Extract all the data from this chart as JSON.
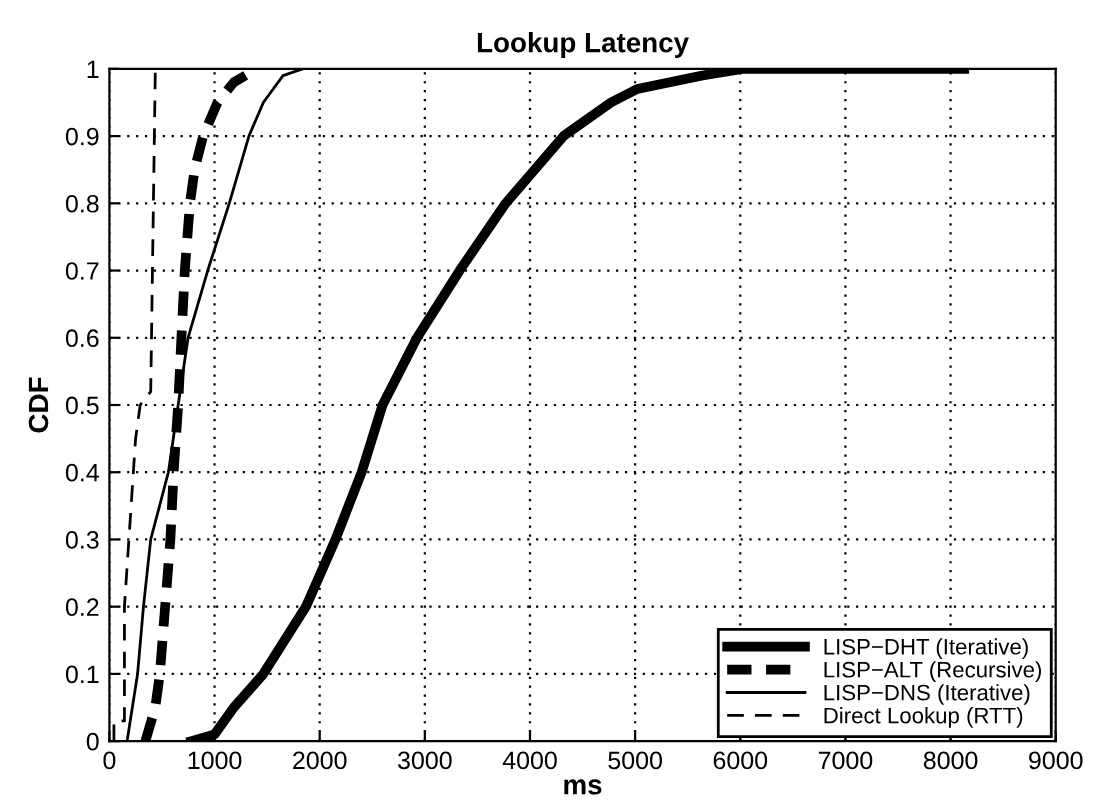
{
  "chart_data": {
    "type": "line",
    "title": "Lookup Latency",
    "xlabel": "ms",
    "ylabel": "CDF",
    "xlim": [
      0,
      9000
    ],
    "xticks": [
      0,
      1000,
      2000,
      3000,
      4000,
      5000,
      6000,
      7000,
      8000,
      9000
    ],
    "ylim": [
      0,
      1
    ],
    "yticks": [
      0,
      0.1,
      0.2,
      0.3,
      0.4,
      0.5,
      0.6,
      0.7,
      0.8,
      0.9,
      1
    ],
    "grid": true,
    "legend": "bottom right",
    "marker": "none",
    "series": [
      {
        "name": "LISP−DHT (Iterative)",
        "color": "#000000",
        "line_style": "solid",
        "x": [
          780,
          1000,
          1183,
          1464,
          1869,
          2150,
          2399,
          2598,
          2925,
          3331,
          3769,
          4319,
          4770,
          5020,
          5640,
          6020,
          8130
        ],
        "values": [
          0,
          0.01,
          0.05,
          0.1,
          0.2,
          0.3,
          0.4,
          0.5,
          0.6,
          0.7,
          0.8,
          0.9,
          0.95,
          0.97,
          0.99,
          1,
          1
        ]
      },
      {
        "name": "LISP−ALT (Recursive)",
        "color": "#000000",
        "line_style": "dashed",
        "x": [
          342,
          436,
          480,
          530,
          580,
          611,
          654,
          685,
          717,
          766,
          810,
          891,
          1028,
          1184,
          1402
        ],
        "values": [
          0,
          0.05,
          0.1,
          0.2,
          0.3,
          0.4,
          0.5,
          0.6,
          0.7,
          0.8,
          0.85,
          0.9,
          0.95,
          0.98,
          1
        ]
      },
      {
        "name": "LISP−DNS (Iterative)",
        "color": "#000000",
        "line_style": "solid",
        "x": [
          168,
          268,
          324,
          393,
          561,
          654,
          748,
          935,
          1140,
          1327,
          1464,
          1651,
          1838
        ],
        "values": [
          0,
          0.1,
          0.2,
          0.3,
          0.4,
          0.5,
          0.6,
          0.7,
          0.8,
          0.9,
          0.95,
          0.99,
          1
        ]
      },
      {
        "name": "Direct Lookup (RTT)",
        "color": "#000000",
        "line_style": "dashed",
        "x": [
          43,
          43,
          143,
          143,
          249,
          293,
          393,
          436,
          436
        ],
        "values": [
          0,
          0.03,
          0.03,
          0.2,
          0.45,
          0.5,
          0.52,
          0.99,
          1
        ]
      }
    ]
  }
}
